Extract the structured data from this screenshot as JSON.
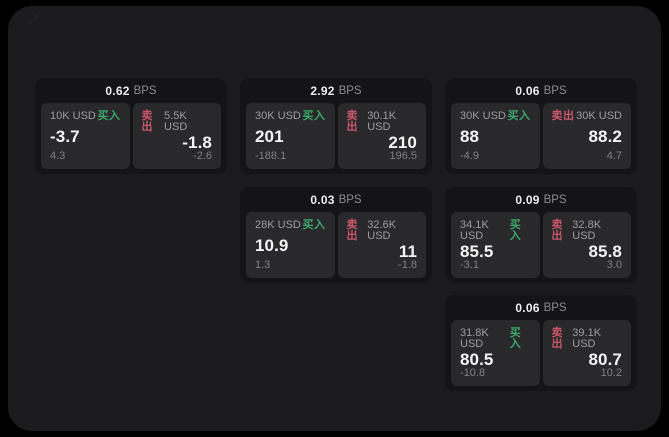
{
  "labels": {
    "bps_unit": "BPS",
    "buy": "买入",
    "sell": "卖出"
  },
  "icons": {
    "top_left": {
      "name": "expand-icon",
      "glyph": "⤢"
    }
  },
  "colors": {
    "background": "#000000",
    "panel_bg": "#1b1b1d",
    "card_bg": "#141416",
    "pane_bg": "#29292b",
    "buy_accent": "#3ca86b",
    "sell_accent": "#c9566b"
  },
  "cards": [
    {
      "bps": "0.62",
      "buy": {
        "size": "10K USD",
        "price": "-3.7",
        "change": "4.3"
      },
      "sell": {
        "size": "5.5K USD",
        "price": "-1.8",
        "change": "-2.6"
      }
    },
    {
      "bps": "2.92",
      "buy": {
        "size": "30K USD",
        "price": "201",
        "change": "-188.1"
      },
      "sell": {
        "size": "30.1K USD",
        "price": "210",
        "change": "196.5"
      }
    },
    {
      "bps": "0.06",
      "buy": {
        "size": "30K USD",
        "price": "88",
        "change": "-4.9"
      },
      "sell": {
        "size": "30K USD",
        "price": "88.2",
        "change": "4.7"
      }
    },
    {
      "bps": "0.03",
      "buy": {
        "size": "28K USD",
        "price": "10.9",
        "change": "1.3"
      },
      "sell": {
        "size": "32.6K USD",
        "price": "11",
        "change": "-1.8"
      }
    },
    {
      "bps": "0.09",
      "buy": {
        "size": "34.1K USD",
        "price": "85.5",
        "change": "-3.1"
      },
      "sell": {
        "size": "32.8K USD",
        "price": "85.8",
        "change": "3.0"
      }
    },
    {
      "bps": "0.06",
      "buy": {
        "size": "31.8K USD",
        "price": "80.5",
        "change": "-10.8"
      },
      "sell": {
        "size": "39.1K USD",
        "price": "80.7",
        "change": "10.2"
      }
    }
  ]
}
